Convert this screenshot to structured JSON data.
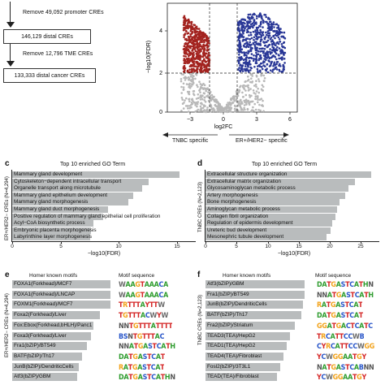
{
  "panel_a": {
    "remove_promoter": "Remove 49,092 promoter CREs",
    "distal_cres": "146,129 distal CREs",
    "remove_tme": "Remove 12,796 TME CREs",
    "distal_cancer_cres": "133,333 distal cancer CREs"
  },
  "panel_b": {
    "y_title": "−log10(FDR)",
    "x_title": "log2FC",
    "y_ticks": [
      "0",
      "2",
      "4"
    ],
    "x_ticks": [
      "−3",
      "0",
      "3",
      "6"
    ],
    "left_label": "TNBC specific",
    "right_label": "ER+/HER2− specific",
    "colors": {
      "tnbc": "#a3231f",
      "er": "#2a3897",
      "ns": "#b8b8b8"
    }
  },
  "panel_c": {
    "letter": "c",
    "title": "Top 10 enriched GO Term",
    "ylabel": "ER+/HER2− CREs (N=4,294)",
    "xlabel": "−log10(FDR)",
    "x_ticks": [
      "0",
      "5",
      "10",
      "15"
    ],
    "terms": [
      "Mammary gland development",
      "Cytoskeleton−dependent intracellular transport",
      "Organelle transport along microtubule",
      "Mammary gland epithelium development",
      "Mammary gland morphogenesis",
      "Mammary gland duct morphogenesis",
      "Positive regulation of mammary gland epithelial cell proliferation",
      "Acyl−CoA biosynthetic process",
      "Embryonic placenta morphogenesis",
      "Labyrinthine layer morphogenesis"
    ]
  },
  "panel_d": {
    "letter": "d",
    "title": "Top 10 enriched GO Term",
    "ylabel": "TNBC CREs (N=2,123)",
    "xlabel": "−log10(FDR)",
    "x_ticks": [
      "0",
      "5",
      "10",
      "15",
      "20",
      "25"
    ],
    "terms": [
      "Extracellular structure organization",
      "Extracellular matrix organization",
      "Glycosaminoglycan metabolic process",
      "Artery morphogenesis",
      "Bone morphogenesis",
      "Aminoglycan metabolic process",
      "Collagen fibril organization",
      "Regulation of epidermis development",
      "Ureteric bud development",
      "Mesonephric tubule development"
    ]
  },
  "panel_e": {
    "letter": "e",
    "header_motifs": "Homer known motifs",
    "header_seq": "Motif sequence",
    "ylabel": "ER+/HER2− CREs (N=4,294)",
    "motifs": [
      "FOXA1(Forkhead)/MCF7",
      "FOXA1(Forkhead)/LNCAP",
      "FOXM1(Forkhead)/MCF7",
      "Foxa2(Forkhead)/Liver",
      "Fox:Ebox(Forkhead,bHLH)/Panc1",
      "Foxa3(Forkhead)/Liver",
      "Fra1(bZIP)/BT549",
      "BATF(bZIP)/Th17",
      "JunB(bZIP)/DendriticCells",
      "Atf3(bZIP)/GBM"
    ],
    "logos": [
      "WAAGTAAACA",
      "WAAGTAAACA",
      "TRTTTAYTTW",
      "TGTTTACWYW",
      "NNTGTTTATTTT",
      "BSNTGTTTAC",
      "NNATGASTCATH",
      "DATGASTCAT",
      "RATGASTCAT",
      "DATGASTCATHN"
    ]
  },
  "panel_f": {
    "letter": "f",
    "header_motifs": "Homer known motifs",
    "header_seq": "Motif sequence",
    "ylabel": "TNBC CREs (N=2,123)",
    "motifs": [
      "Atf3(bZIP)/GBM",
      "Fra1(bZIP)/BT549",
      "JunB(bZIP)/DendriticCells",
      "BATF(bZIP)/Th17",
      "Fra2(bZIP)/Striatum",
      "TEAD3(TEA)/HepG2",
      "TEAD1(TEA)/HepG2",
      "TEAD4(TEA)/Fibroblast",
      "Fosl2(bZIP)/3T3L1",
      "TEAD(TEA)/Fibroblast"
    ],
    "logos": [
      "DATGASTCATHN",
      "NNATGASTCATH",
      "RATGASTCAT",
      "DATGASTCAT",
      "GGATGACTCATC",
      "TRCATTCCWB",
      "CYRCATTCCWGG",
      "YCWGGAATGY",
      "NATGASTCABNN",
      "YCWGGAATGY"
    ]
  },
  "logo_colors": {
    "A": "#2e9c2e",
    "C": "#2956c9",
    "G": "#f2a31b",
    "T": "#d42626",
    "W": "#6a6a6a",
    "R": "#f2a31b",
    "Y": "#d42626",
    "S": "#2956c9",
    "M": "#2e9c2e",
    "K": "#f2a31b",
    "B": "#2956c9",
    "D": "#2e9c2e",
    "H": "#2e9c2e",
    "V": "#f2a31b",
    "N": "#555555"
  }
}
